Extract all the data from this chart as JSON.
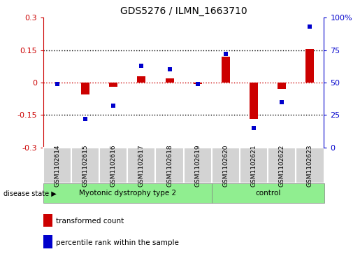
{
  "title": "GDS5276 / ILMN_1663710",
  "samples": [
    "GSM1102614",
    "GSM1102615",
    "GSM1102616",
    "GSM1102617",
    "GSM1102618",
    "GSM1102619",
    "GSM1102620",
    "GSM1102621",
    "GSM1102622",
    "GSM1102623"
  ],
  "transformed_count": [
    0.0,
    -0.055,
    -0.02,
    0.03,
    0.02,
    -0.008,
    0.12,
    -0.17,
    -0.03,
    0.155
  ],
  "percentile_rank": [
    49,
    22,
    32,
    63,
    60,
    49,
    72,
    15,
    35,
    93
  ],
  "groups": [
    {
      "label": "Myotonic dystrophy type 2",
      "start": 0,
      "end": 6,
      "color": "#90EE90"
    },
    {
      "label": "control",
      "start": 6,
      "end": 10,
      "color": "#90EE90"
    }
  ],
  "left_ylim": [
    -0.3,
    0.3
  ],
  "right_ylim": [
    0,
    100
  ],
  "left_yticks": [
    -0.3,
    -0.15,
    0.0,
    0.15,
    0.3
  ],
  "right_yticks": [
    0,
    25,
    50,
    75,
    100
  ],
  "left_yticklabels": [
    "-0.3",
    "-0.15",
    "0",
    "0.15",
    "0.3"
  ],
  "right_yticklabels": [
    "0",
    "25",
    "50",
    "75",
    "100%"
  ],
  "bar_color": "#cc0000",
  "dot_color": "#0000cc",
  "dotted_line_color": "#000000",
  "zero_line_color": "#cc0000",
  "bg_color": "#ffffff",
  "plot_bg_color": "#ffffff",
  "sample_box_color": "#d3d3d3",
  "legend_items": [
    {
      "label": "transformed count",
      "color": "#cc0000"
    },
    {
      "label": "percentile rank within the sample",
      "color": "#0000cc"
    }
  ],
  "disease_state_label": "disease state"
}
